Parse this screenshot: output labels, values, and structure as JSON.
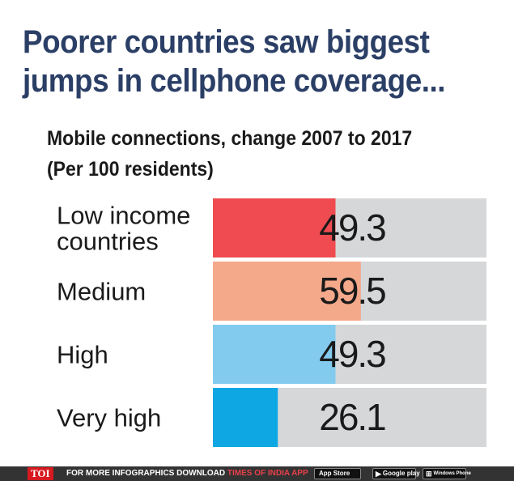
{
  "title": "Poorer countries saw biggest jumps in cellphone coverage...",
  "subtitle": "Mobile connections, change 2007 to 2017 (Per 100 residents)",
  "chart_data": {
    "type": "bar",
    "orientation": "horizontal",
    "categories": [
      "Low income countries",
      "Medium",
      "High",
      "Very high"
    ],
    "category_lines": [
      [
        "Low income",
        "countries"
      ],
      [
        "Medium"
      ],
      [
        "High"
      ],
      [
        "Very high"
      ]
    ],
    "values": [
      49.3,
      59.5,
      49.3,
      26.1
    ],
    "value_labels": [
      "49.3",
      "59.5",
      "49.3",
      "26.1"
    ],
    "xlim": [
      0,
      110
    ],
    "colors": [
      "#ef4b50",
      "#f4a98b",
      "#82cbef",
      "#0ea7e3"
    ],
    "track_color": "#d6d7d9",
    "grid": false,
    "legend": "none"
  },
  "footer": {
    "logo": "TOI",
    "promo_text": "FOR MORE  INFOGRAPHICS DOWNLOAD ",
    "promo_app": "TIMES OF INDIA  APP",
    "stores": [
      {
        "icon": "apple-icon",
        "glyph": "",
        "label": "App Store"
      },
      {
        "icon": "google-play-icon",
        "glyph": "▶",
        "label": "Google play"
      },
      {
        "icon": "windows-icon",
        "glyph": "⊞",
        "label": "Windows Phone"
      }
    ]
  }
}
